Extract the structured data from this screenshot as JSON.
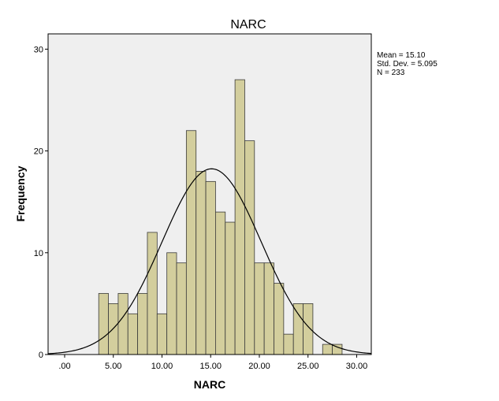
{
  "chart_data": {
    "type": "bar",
    "title": "NARC",
    "xlabel": "NARC",
    "ylabel": "Frequency",
    "xlim": [
      -1.7,
      31.5
    ],
    "ylim": [
      0,
      31.5
    ],
    "x_ticks": [
      0,
      5,
      10,
      15,
      20,
      25,
      30
    ],
    "x_tick_labels": [
      ".00",
      "5.00",
      "10.00",
      "15.00",
      "20.00",
      "25.00",
      "30.00"
    ],
    "y_ticks": [
      0,
      10,
      20,
      30
    ],
    "y_tick_labels": [
      "0",
      "10",
      "20",
      "30"
    ],
    "bin_width": 1,
    "bins": [
      {
        "x": 4,
        "count": 6
      },
      {
        "x": 5,
        "count": 5
      },
      {
        "x": 6,
        "count": 6
      },
      {
        "x": 7,
        "count": 4
      },
      {
        "x": 8,
        "count": 6
      },
      {
        "x": 9,
        "count": 12
      },
      {
        "x": 10,
        "count": 4
      },
      {
        "x": 11,
        "count": 10
      },
      {
        "x": 12,
        "count": 9
      },
      {
        "x": 13,
        "count": 22
      },
      {
        "x": 14,
        "count": 18
      },
      {
        "x": 15,
        "count": 17
      },
      {
        "x": 16,
        "count": 14
      },
      {
        "x": 17,
        "count": 13
      },
      {
        "x": 18,
        "count": 27
      },
      {
        "x": 19,
        "count": 21
      },
      {
        "x": 20,
        "count": 9
      },
      {
        "x": 21,
        "count": 9
      },
      {
        "x": 22,
        "count": 7
      },
      {
        "x": 23,
        "count": 2
      },
      {
        "x": 24,
        "count": 5
      },
      {
        "x": 25,
        "count": 5
      },
      {
        "x": 27,
        "count": 1
      },
      {
        "x": 28,
        "count": 1
      }
    ],
    "normal_curve": {
      "mean": 15.1,
      "sd": 5.095,
      "n": 233
    },
    "stats": {
      "mean_label": "Mean = 15.10",
      "sd_label": "Std. Dev. = 5.095",
      "n_label": "N = 233"
    },
    "grid": false,
    "colors": {
      "bar_fill": "#d3ce9d",
      "bar_stroke": "#3a3a3a",
      "plot_background": "#efefef",
      "curve": "#000000"
    }
  }
}
